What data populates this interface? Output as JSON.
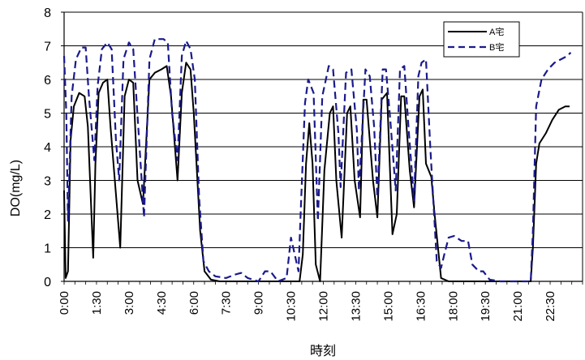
{
  "chart_data": {
    "type": "line",
    "title": "",
    "xlabel": "時刻",
    "ylabel": "DO(mg/L)",
    "ylim": [
      0,
      8
    ],
    "yticks": [
      "0",
      "1",
      "2",
      "3",
      "4",
      "5",
      "6",
      "7",
      "8"
    ],
    "xlim": [
      0,
      24
    ],
    "x_tick_labels": [
      "0:00",
      "1:30",
      "3:00",
      "4:30",
      "6:00",
      "7:30",
      "9:00",
      "10:30",
      "12:00",
      "13:30",
      "15:00",
      "16:30",
      "18:00",
      "19:30",
      "21:00",
      "22:30"
    ],
    "grid": "horizontal",
    "legend_position": "top-right",
    "series": [
      {
        "name": "A宅",
        "color": "#000000",
        "style": "solid",
        "points": [
          [
            0.0,
            2.7
          ],
          [
            0.07,
            0.1
          ],
          [
            0.18,
            0.3
          ],
          [
            0.3,
            4.2
          ],
          [
            0.45,
            5.2
          ],
          [
            0.7,
            5.6
          ],
          [
            0.95,
            5.5
          ],
          [
            1.1,
            4.6
          ],
          [
            1.35,
            0.7
          ],
          [
            1.45,
            3.5
          ],
          [
            1.6,
            5.6
          ],
          [
            1.8,
            5.9
          ],
          [
            2.0,
            6.0
          ],
          [
            2.15,
            4.6
          ],
          [
            2.6,
            1.0
          ],
          [
            2.8,
            5.5
          ],
          [
            3.0,
            6.0
          ],
          [
            3.2,
            5.9
          ],
          [
            3.4,
            3.0
          ],
          [
            3.65,
            2.3
          ],
          [
            3.95,
            6.0
          ],
          [
            4.2,
            6.2
          ],
          [
            4.5,
            6.3
          ],
          [
            4.75,
            6.4
          ],
          [
            4.95,
            5.5
          ],
          [
            5.25,
            3.0
          ],
          [
            5.45,
            5.6
          ],
          [
            5.65,
            6.5
          ],
          [
            5.85,
            6.3
          ],
          [
            6.0,
            5.0
          ],
          [
            6.3,
            1.5
          ],
          [
            6.5,
            0.3
          ],
          [
            6.8,
            0.05
          ],
          [
            7.2,
            0.0
          ],
          [
            8.5,
            0.0
          ],
          [
            10.0,
            0.0
          ],
          [
            10.9,
            0.0
          ],
          [
            11.05,
            0.8
          ],
          [
            11.2,
            3.5
          ],
          [
            11.35,
            4.7
          ],
          [
            11.5,
            3.5
          ],
          [
            11.65,
            0.5
          ],
          [
            11.85,
            0.0
          ],
          [
            12.05,
            3.3
          ],
          [
            12.3,
            5.0
          ],
          [
            12.45,
            5.2
          ],
          [
            12.6,
            3.0
          ],
          [
            12.85,
            1.3
          ],
          [
            13.1,
            5.0
          ],
          [
            13.25,
            5.2
          ],
          [
            13.45,
            3.0
          ],
          [
            13.7,
            1.9
          ],
          [
            13.85,
            5.4
          ],
          [
            14.0,
            5.4
          ],
          [
            14.3,
            3.0
          ],
          [
            14.5,
            1.9
          ],
          [
            14.7,
            5.4
          ],
          [
            14.95,
            5.6
          ],
          [
            15.2,
            1.4
          ],
          [
            15.4,
            2.0
          ],
          [
            15.6,
            5.5
          ],
          [
            15.75,
            5.5
          ],
          [
            16.0,
            3.3
          ],
          [
            16.2,
            2.2
          ],
          [
            16.45,
            5.5
          ],
          [
            16.6,
            5.7
          ],
          [
            16.75,
            3.5
          ],
          [
            17.0,
            3.1
          ],
          [
            17.15,
            2.0
          ],
          [
            17.45,
            0.1
          ],
          [
            17.8,
            0.0
          ],
          [
            19.5,
            0.0
          ],
          [
            21.0,
            0.0
          ],
          [
            21.6,
            0.0
          ],
          [
            21.7,
            1.0
          ],
          [
            21.85,
            3.5
          ],
          [
            22.0,
            4.1
          ],
          [
            22.3,
            4.4
          ],
          [
            22.6,
            4.8
          ],
          [
            22.9,
            5.1
          ],
          [
            23.2,
            5.2
          ],
          [
            23.4,
            5.2
          ]
        ]
      },
      {
        "name": "B宅",
        "color": "#1a1a8c",
        "style": "dashed",
        "points": [
          [
            0.0,
            6.7
          ],
          [
            0.1,
            5.0
          ],
          [
            0.18,
            1.8
          ],
          [
            0.35,
            5.5
          ],
          [
            0.55,
            6.6
          ],
          [
            0.8,
            6.95
          ],
          [
            1.0,
            6.95
          ],
          [
            1.15,
            5.5
          ],
          [
            1.4,
            3.6
          ],
          [
            1.55,
            5.8
          ],
          [
            1.75,
            6.9
          ],
          [
            2.0,
            7.1
          ],
          [
            2.2,
            6.9
          ],
          [
            2.4,
            4.2
          ],
          [
            2.55,
            3.0
          ],
          [
            2.75,
            6.6
          ],
          [
            3.0,
            7.1
          ],
          [
            3.2,
            6.9
          ],
          [
            3.45,
            4.4
          ],
          [
            3.7,
            1.9
          ],
          [
            3.95,
            6.6
          ],
          [
            4.2,
            7.2
          ],
          [
            4.6,
            7.2
          ],
          [
            4.8,
            7.1
          ],
          [
            5.0,
            5.0
          ],
          [
            5.25,
            3.6
          ],
          [
            5.45,
            6.7
          ],
          [
            5.65,
            7.15
          ],
          [
            5.85,
            6.9
          ],
          [
            6.05,
            6.0
          ],
          [
            6.25,
            2.5
          ],
          [
            6.45,
            0.6
          ],
          [
            6.7,
            0.3
          ],
          [
            7.0,
            0.15
          ],
          [
            7.5,
            0.1
          ],
          [
            7.9,
            0.2
          ],
          [
            8.2,
            0.25
          ],
          [
            8.5,
            0.1
          ],
          [
            9.0,
            0.0
          ],
          [
            9.3,
            0.3
          ],
          [
            9.55,
            0.3
          ],
          [
            9.9,
            0.0
          ],
          [
            10.3,
            0.1
          ],
          [
            10.5,
            1.3
          ],
          [
            10.85,
            0.3
          ],
          [
            10.95,
            2.0
          ],
          [
            11.15,
            5.3
          ],
          [
            11.3,
            6.0
          ],
          [
            11.55,
            5.6
          ],
          [
            11.75,
            1.8
          ],
          [
            11.95,
            5.5
          ],
          [
            12.25,
            6.4
          ],
          [
            12.45,
            6.3
          ],
          [
            12.7,
            4.4
          ],
          [
            12.8,
            2.8
          ],
          [
            13.05,
            6.2
          ],
          [
            13.3,
            6.3
          ],
          [
            13.55,
            4.5
          ],
          [
            13.65,
            2.7
          ],
          [
            13.95,
            6.3
          ],
          [
            14.15,
            6.1
          ],
          [
            14.35,
            4.6
          ],
          [
            14.5,
            2.5
          ],
          [
            14.75,
            6.3
          ],
          [
            14.9,
            6.3
          ],
          [
            15.1,
            4.8
          ],
          [
            15.35,
            2.7
          ],
          [
            15.55,
            6.3
          ],
          [
            15.75,
            6.4
          ],
          [
            15.95,
            4.5
          ],
          [
            16.2,
            2.4
          ],
          [
            16.4,
            6.1
          ],
          [
            16.55,
            6.5
          ],
          [
            16.75,
            6.6
          ],
          [
            16.95,
            4.0
          ],
          [
            17.25,
            0.6
          ],
          [
            17.45,
            0.4
          ],
          [
            17.6,
            0.8
          ],
          [
            17.8,
            1.3
          ],
          [
            18.05,
            1.35
          ],
          [
            18.4,
            1.2
          ],
          [
            18.7,
            1.2
          ],
          [
            18.9,
            0.5
          ],
          [
            19.2,
            0.3
          ],
          [
            19.4,
            0.3
          ],
          [
            19.7,
            0.05
          ],
          [
            20.2,
            0.0
          ],
          [
            21.6,
            0.0
          ],
          [
            21.7,
            1.5
          ],
          [
            21.85,
            5.2
          ],
          [
            22.1,
            6.0
          ],
          [
            22.4,
            6.3
          ],
          [
            22.7,
            6.5
          ],
          [
            23.0,
            6.6
          ],
          [
            23.3,
            6.7
          ],
          [
            23.45,
            6.8
          ]
        ]
      }
    ]
  }
}
